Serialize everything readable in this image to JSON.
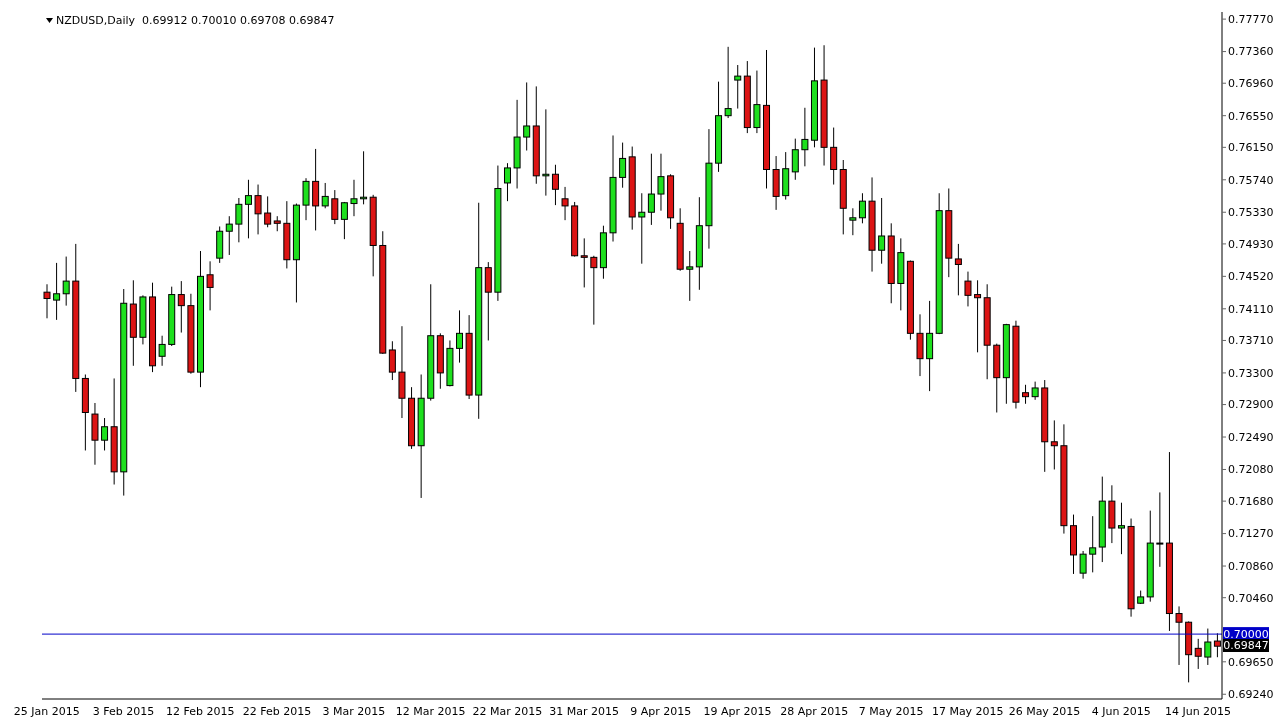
{
  "chart_data": {
    "type": "candlestick",
    "title": "NZDUSD,Daily  0.69912 0.70010 0.69708 0.69847",
    "categories": [
      "25 Jan 2015",
      null,
      null,
      null,
      null,
      null,
      null,
      null,
      "3 Feb 2015",
      null,
      null,
      null,
      null,
      null,
      null,
      null,
      "12 Feb 2015",
      null,
      null,
      null,
      null,
      null,
      null,
      null,
      "22 Feb 2015",
      null,
      null,
      null,
      null,
      null,
      null,
      null,
      "3 Mar 2015",
      null,
      null,
      null,
      null,
      null,
      null,
      null,
      "12 Mar 2015",
      null,
      null,
      null,
      null,
      null,
      null,
      null,
      "22 Mar 2015",
      null,
      null,
      null,
      null,
      null,
      null,
      null,
      "31 Mar 2015",
      null,
      null,
      null,
      null,
      null,
      null,
      null,
      "9 Apr 2015",
      null,
      null,
      null,
      null,
      null,
      null,
      null,
      "19 Apr 2015",
      null,
      null,
      null,
      null,
      null,
      null,
      null,
      "28 Apr 2015",
      null,
      null,
      null,
      null,
      null,
      null,
      null,
      "7 May 2015",
      null,
      null,
      null,
      null,
      null,
      null,
      null,
      "17 May 2015",
      null,
      null,
      null,
      null,
      null,
      null,
      null,
      "26 May 2015",
      null,
      null,
      null,
      null,
      null,
      null,
      null,
      "4 Jun 2015",
      null,
      null,
      null,
      null,
      null,
      null,
      null,
      "14 Jun 2015",
      null,
      null
    ],
    "ohlc": [
      [
        0.7432,
        0.7442,
        0.7399,
        0.7424
      ],
      [
        0.7422,
        0.7469,
        0.7397,
        0.743
      ],
      [
        0.743,
        0.7477,
        0.7415,
        0.7446
      ],
      [
        0.7446,
        0.7493,
        0.7306,
        0.7323
      ],
      [
        0.7323,
        0.7328,
        0.7232,
        0.728
      ],
      [
        0.7278,
        0.7292,
        0.7214,
        0.7245
      ],
      [
        0.7245,
        0.7273,
        0.7232,
        0.7262
      ],
      [
        0.7262,
        0.7323,
        0.7189,
        0.7205
      ],
      [
        0.7205,
        0.7436,
        0.7175,
        0.7418
      ],
      [
        0.7417,
        0.7447,
        0.7339,
        0.7375
      ],
      [
        0.7375,
        0.7428,
        0.7366,
        0.7426
      ],
      [
        0.7426,
        0.7444,
        0.7331,
        0.7339
      ],
      [
        0.7351,
        0.7377,
        0.7339,
        0.7366
      ],
      [
        0.7366,
        0.7439,
        0.7364,
        0.7429
      ],
      [
        0.7429,
        0.7446,
        0.7381,
        0.7415
      ],
      [
        0.7415,
        0.743,
        0.7329,
        0.7331
      ],
      [
        0.7331,
        0.7484,
        0.7312,
        0.7452
      ],
      [
        0.7454,
        0.7471,
        0.7409,
        0.7438
      ],
      [
        0.7475,
        0.7515,
        0.7469,
        0.7509
      ],
      [
        0.7509,
        0.7528,
        0.7479,
        0.7518
      ],
      [
        0.7518,
        0.7551,
        0.7495,
        0.7543
      ],
      [
        0.7543,
        0.7574,
        0.75,
        0.7554
      ],
      [
        0.7554,
        0.7568,
        0.7505,
        0.7531
      ],
      [
        0.7532,
        0.7553,
        0.7514,
        0.7518
      ],
      [
        0.7522,
        0.7528,
        0.7509,
        0.7519
      ],
      [
        0.7519,
        0.7547,
        0.7462,
        0.7473
      ],
      [
        0.7473,
        0.7544,
        0.7419,
        0.7542
      ],
      [
        0.7542,
        0.7576,
        0.7523,
        0.7572
      ],
      [
        0.7572,
        0.7613,
        0.751,
        0.7541
      ],
      [
        0.7541,
        0.757,
        0.7538,
        0.7553
      ],
      [
        0.755,
        0.7561,
        0.7518,
        0.7524
      ],
      [
        0.7524,
        0.7546,
        0.7499,
        0.7545
      ],
      [
        0.7544,
        0.7574,
        0.7528,
        0.755
      ],
      [
        0.755,
        0.761,
        0.7543,
        0.7552
      ],
      [
        0.7552,
        0.7555,
        0.7452,
        0.7491
      ],
      [
        0.7491,
        0.7509,
        0.7354,
        0.7355
      ],
      [
        0.7359,
        0.737,
        0.7321,
        0.7331
      ],
      [
        0.7331,
        0.7389,
        0.7273,
        0.7298
      ],
      [
        0.7298,
        0.7312,
        0.7234,
        0.7238
      ],
      [
        0.7238,
        0.7328,
        0.7172,
        0.7298
      ],
      [
        0.7298,
        0.7442,
        0.7295,
        0.7377
      ],
      [
        0.7377,
        0.738,
        0.731,
        0.733
      ],
      [
        0.7314,
        0.7371,
        0.7313,
        0.7361
      ],
      [
        0.7361,
        0.7409,
        0.7343,
        0.738
      ],
      [
        0.738,
        0.7403,
        0.7297,
        0.7302
      ],
      [
        0.7302,
        0.7545,
        0.7272,
        0.7463
      ],
      [
        0.7463,
        0.747,
        0.7371,
        0.7432
      ],
      [
        0.7432,
        0.7592,
        0.7421,
        0.7563
      ],
      [
        0.757,
        0.7595,
        0.7547,
        0.7589
      ],
      [
        0.7589,
        0.7675,
        0.7563,
        0.7628
      ],
      [
        0.7628,
        0.7697,
        0.7611,
        0.7642
      ],
      [
        0.7642,
        0.7692,
        0.7569,
        0.7579
      ],
      [
        0.7579,
        0.7663,
        0.7554,
        0.7581
      ],
      [
        0.7581,
        0.7593,
        0.7542,
        0.7562
      ],
      [
        0.755,
        0.7565,
        0.7523,
        0.7541
      ],
      [
        0.7541,
        0.7546,
        0.7477,
        0.7478
      ],
      [
        0.7478,
        0.75,
        0.7438,
        0.7476
      ],
      [
        0.7476,
        0.7478,
        0.7391,
        0.7463
      ],
      [
        0.7463,
        0.7516,
        0.7449,
        0.7507
      ],
      [
        0.7507,
        0.763,
        0.7496,
        0.7577
      ],
      [
        0.7577,
        0.7621,
        0.7564,
        0.7601
      ],
      [
        0.7603,
        0.7616,
        0.7511,
        0.7527
      ],
      [
        0.7527,
        0.7557,
        0.7468,
        0.7533
      ],
      [
        0.7533,
        0.7607,
        0.7517,
        0.7556
      ],
      [
        0.7556,
        0.7607,
        0.7535,
        0.7578
      ],
      [
        0.7579,
        0.7581,
        0.7512,
        0.7526
      ],
      [
        0.7519,
        0.7538,
        0.7459,
        0.7461
      ],
      [
        0.7461,
        0.7484,
        0.7421,
        0.7464
      ],
      [
        0.7464,
        0.7552,
        0.7435,
        0.7516
      ],
      [
        0.7516,
        0.7638,
        0.7487,
        0.7595
      ],
      [
        0.7595,
        0.7698,
        0.7584,
        0.7655
      ],
      [
        0.7655,
        0.7742,
        0.7652,
        0.7664
      ],
      [
        0.77,
        0.7719,
        0.7664,
        0.7705
      ],
      [
        0.7705,
        0.7724,
        0.7633,
        0.764
      ],
      [
        0.764,
        0.7712,
        0.7633,
        0.7669
      ],
      [
        0.7668,
        0.7738,
        0.7563,
        0.7587
      ],
      [
        0.7587,
        0.7604,
        0.7536,
        0.7553
      ],
      [
        0.7554,
        0.7609,
        0.7549,
        0.7588
      ],
      [
        0.7584,
        0.7626,
        0.7574,
        0.7612
      ],
      [
        0.7612,
        0.7665,
        0.7591,
        0.7625
      ],
      [
        0.7624,
        0.7741,
        0.7615,
        0.7699
      ],
      [
        0.77,
        0.7744,
        0.7592,
        0.7615
      ],
      [
        0.7615,
        0.764,
        0.7568,
        0.7587
      ],
      [
        0.7587,
        0.7599,
        0.7505,
        0.7538
      ],
      [
        0.7523,
        0.7538,
        0.7504,
        0.7526
      ],
      [
        0.7526,
        0.7557,
        0.7519,
        0.7547
      ],
      [
        0.7547,
        0.7577,
        0.7458,
        0.7485
      ],
      [
        0.7485,
        0.7551,
        0.7468,
        0.7503
      ],
      [
        0.7503,
        0.7519,
        0.7418,
        0.7443
      ],
      [
        0.7443,
        0.75,
        0.7409,
        0.7482
      ],
      [
        0.7471,
        0.7472,
        0.7372,
        0.738
      ],
      [
        0.738,
        0.7404,
        0.7326,
        0.7348
      ],
      [
        0.7348,
        0.7421,
        0.7307,
        0.738
      ],
      [
        0.738,
        0.7557,
        0.7379,
        0.7535
      ],
      [
        0.7535,
        0.7563,
        0.7451,
        0.7475
      ],
      [
        0.7474,
        0.7493,
        0.7428,
        0.7467
      ],
      [
        0.7446,
        0.7458,
        0.7414,
        0.7428
      ],
      [
        0.7429,
        0.7447,
        0.7356,
        0.7425
      ],
      [
        0.7425,
        0.7442,
        0.7322,
        0.7365
      ],
      [
        0.7365,
        0.7367,
        0.728,
        0.7324
      ],
      [
        0.7324,
        0.7392,
        0.7291,
        0.7391
      ],
      [
        0.7389,
        0.7396,
        0.7285,
        0.7293
      ],
      [
        0.7305,
        0.7315,
        0.7291,
        0.73
      ],
      [
        0.73,
        0.7319,
        0.7296,
        0.7311
      ],
      [
        0.7311,
        0.7321,
        0.7205,
        0.7243
      ],
      [
        0.7243,
        0.727,
        0.7208,
        0.7238
      ],
      [
        0.7238,
        0.7265,
        0.7127,
        0.7137
      ],
      [
        0.7137,
        0.7151,
        0.7076,
        0.71
      ],
      [
        0.7077,
        0.7105,
        0.707,
        0.7101
      ],
      [
        0.7101,
        0.7149,
        0.7078,
        0.7109
      ],
      [
        0.711,
        0.7199,
        0.7091,
        0.7168
      ],
      [
        0.7168,
        0.7188,
        0.7115,
        0.7134
      ],
      [
        0.7134,
        0.7166,
        0.7101,
        0.7137
      ],
      [
        0.7136,
        0.7146,
        0.7022,
        0.7032
      ],
      [
        0.7039,
        0.7055,
        0.7038,
        0.7047
      ],
      [
        0.7047,
        0.7156,
        0.7041,
        0.7115
      ],
      [
        0.7115,
        0.7179,
        0.7085,
        0.7115
      ],
      [
        0.7115,
        0.723,
        0.7004,
        0.7026
      ],
      [
        0.7026,
        0.7035,
        0.6961,
        0.7015
      ],
      [
        0.7015,
        0.7016,
        0.6939,
        0.6974
      ],
      [
        0.6982,
        0.6994,
        0.6956,
        0.6972
      ],
      [
        0.6971,
        0.7007,
        0.6961,
        0.699
      ],
      [
        0.69912,
        0.7001,
        0.69708,
        0.69847
      ]
    ],
    "colors": [
      "#dc1414",
      "#1ee01e",
      "#1ee01e",
      "#dc1414",
      "#dc1414",
      "#dc1414",
      "#1ee01e",
      "#dc1414",
      "#1ee01e",
      "#dc1414",
      "#1ee01e",
      "#dc1414",
      "#1ee01e",
      "#1ee01e",
      "#dc1414",
      "#dc1414",
      "#1ee01e",
      "#dc1414",
      "#1ee01e",
      "#1ee01e",
      "#1ee01e",
      "#1ee01e",
      "#dc1414",
      "#dc1414",
      "#dc1414",
      "#dc1414",
      "#1ee01e",
      "#1ee01e",
      "#dc1414",
      "#1ee01e",
      "#dc1414",
      "#1ee01e",
      "#1ee01e",
      "#1ee01e",
      "#dc1414",
      "#dc1414",
      "#dc1414",
      "#dc1414",
      "#dc1414",
      "#1ee01e",
      "#1ee01e",
      "#dc1414",
      "#1ee01e",
      "#1ee01e",
      "#dc1414",
      "#1ee01e",
      "#dc1414",
      "#1ee01e",
      "#1ee01e",
      "#1ee01e",
      "#1ee01e",
      "#dc1414",
      "#1ee01e",
      "#dc1414",
      "#dc1414",
      "#dc1414",
      "#dc1414",
      "#dc1414",
      "#1ee01e",
      "#1ee01e",
      "#1ee01e",
      "#dc1414",
      "#1ee01e",
      "#1ee01e",
      "#1ee01e",
      "#dc1414",
      "#dc1414",
      "#1ee01e",
      "#1ee01e",
      "#1ee01e",
      "#1ee01e",
      "#1ee01e",
      "#1ee01e",
      "#dc1414",
      "#1ee01e",
      "#dc1414",
      "#dc1414",
      "#1ee01e",
      "#1ee01e",
      "#1ee01e",
      "#1ee01e",
      "#dc1414",
      "#dc1414",
      "#dc1414",
      "#1ee01e",
      "#1ee01e",
      "#dc1414",
      "#1ee01e",
      "#dc1414",
      "#1ee01e",
      "#dc1414",
      "#dc1414",
      "#1ee01e",
      "#1ee01e",
      "#dc1414",
      "#dc1414",
      "#dc1414",
      "#dc1414",
      "#dc1414",
      "#dc1414",
      "#1ee01e",
      "#dc1414",
      "#dc1414",
      "#1ee01e",
      "#dc1414",
      "#dc1414",
      "#dc1414",
      "#dc1414",
      "#1ee01e",
      "#1ee01e",
      "#1ee01e",
      "#dc1414",
      "#1ee01e",
      "#dc1414",
      "#1ee01e",
      "#1ee01e",
      "#1ee01e",
      "#dc1414",
      "#dc1414",
      "#dc1414",
      "#dc1414",
      "#1ee01e",
      "#dc1414"
    ],
    "ylim": [
      0.6918,
      0.7786
    ],
    "yticks": [
      {
        "value": 0.7777,
        "label": "0.77770"
      },
      {
        "value": 0.7736,
        "label": "0.77360"
      },
      {
        "value": 0.7696,
        "label": "0.76960"
      },
      {
        "value": 0.7655,
        "label": "0.76550"
      },
      {
        "value": 0.7615,
        "label": "0.76150"
      },
      {
        "value": 0.7574,
        "label": "0.75740"
      },
      {
        "value": 0.7533,
        "label": "0.75330"
      },
      {
        "value": 0.7493,
        "label": "0.74930"
      },
      {
        "value": 0.7452,
        "label": "0.74520"
      },
      {
        "value": 0.7411,
        "label": "0.74110"
      },
      {
        "value": 0.7371,
        "label": "0.73710"
      },
      {
        "value": 0.733,
        "label": "0.73300"
      },
      {
        "value": 0.729,
        "label": "0.72900"
      },
      {
        "value": 0.7249,
        "label": "0.72490"
      },
      {
        "value": 0.7208,
        "label": "0.72080"
      },
      {
        "value": 0.7168,
        "label": "0.71680"
      },
      {
        "value": 0.7127,
        "label": "0.71270"
      },
      {
        "value": 0.7086,
        "label": "0.70860"
      },
      {
        "value": 0.7046,
        "label": "0.70460"
      },
      {
        "value": 0.6965,
        "label": "0.69650"
      },
      {
        "value": 0.6924,
        "label": "0.69240"
      }
    ],
    "ref_lines": [
      {
        "axis": "y",
        "value": 0.7,
        "label": "0.70000",
        "color": "#0000c8"
      }
    ],
    "annotations": [
      "0.69847"
    ]
  }
}
